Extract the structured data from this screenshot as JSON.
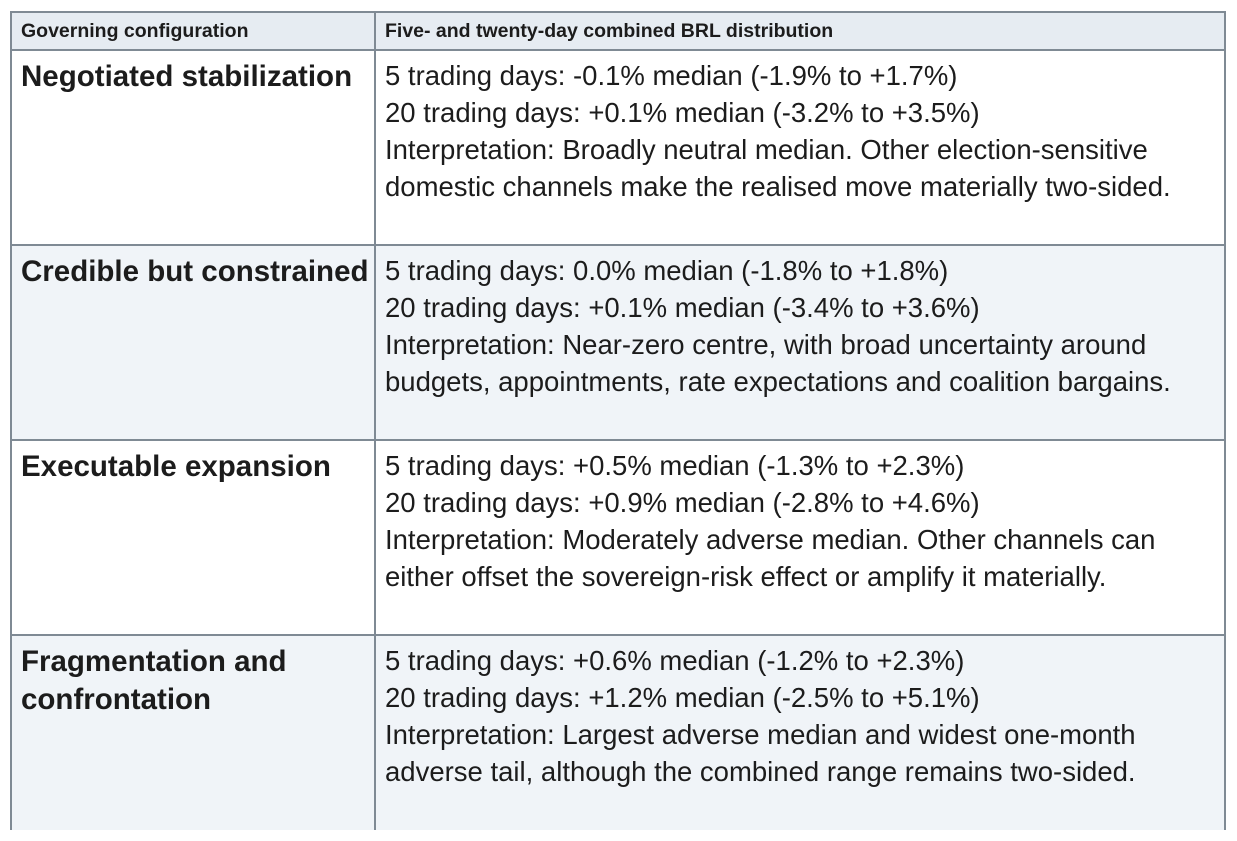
{
  "header": {
    "col1": "Governing configuration",
    "col2": "Five- and twenty-day combined BRL distribution"
  },
  "rows": [
    {
      "config": "Negotiated stabilization",
      "five_day": "5 trading days: -0.1% median (-1.9% to +1.7%)",
      "twenty_day": "20 trading days: +0.1% median (-3.2% to +3.5%)",
      "interpretation": "Interpretation: Broadly neutral median. Other election-sensitive domestic channels make the realised move materially two-sided."
    },
    {
      "config": "Credible but constrained",
      "five_day": "5 trading days: 0.0% median (-1.8% to +1.8%)",
      "twenty_day": "20 trading days: +0.1% median (-3.4% to +3.6%)",
      "interpretation": "Interpretation: Near-zero centre, with broad uncertainty around budgets, appointments, rate expectations and coalition bargains."
    },
    {
      "config": "Executable expansion",
      "five_day": "5 trading days: +0.5% median (-1.3% to +2.3%)",
      "twenty_day": "20 trading days: +0.9% median (-2.8% to +4.6%)",
      "interpretation": "Interpretation: Moderately adverse median. Other channels can either offset the sovereign-risk effect or amplify it materially."
    },
    {
      "config": "Fragmentation and confrontation",
      "five_day": "5 trading days: +0.6% median (-1.2% to +2.3%)",
      "twenty_day": "20 trading days: +1.2% median (-2.5% to +5.1%)",
      "interpretation": "Interpretation: Largest adverse median and widest one-month adverse tail, although the combined range remains two-sided."
    }
  ]
}
